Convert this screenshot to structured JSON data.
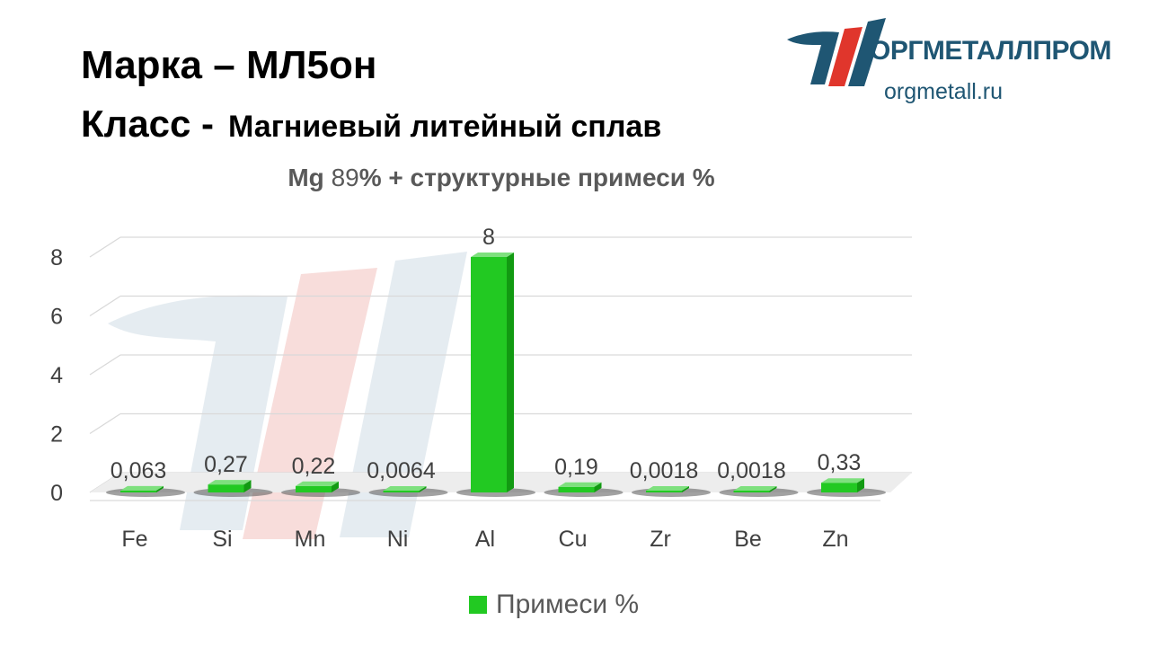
{
  "header": {
    "marka_label": "Марка",
    "marka_sep": "–",
    "marka_value": "МЛ5он",
    "klass_label": "Класс -",
    "klass_value": "Магниевый литейный сплав"
  },
  "logo": {
    "name": "ОРГМЕТАЛЛПРОМ",
    "url": "orgmetall.ru",
    "colors": {
      "brand_blue": "#1f5673",
      "brand_red": "#e0362c"
    }
  },
  "chart_data": {
    "type": "bar",
    "title_parts": {
      "element": "Mg",
      "percent": "89",
      "rest": "% + структурные  примеси %"
    },
    "categories": [
      "Fe",
      "Si",
      "Mn",
      "Ni",
      "Al",
      "Cu",
      "Zr",
      "Be",
      "Zn"
    ],
    "series": [
      {
        "name": "Примеси %",
        "values": [
          0.063,
          0.27,
          0.22,
          0.0064,
          8,
          0.19,
          0.0018,
          0.0018,
          0.33
        ],
        "labels": [
          "0,063",
          "0,27",
          "0,22",
          "0,0064",
          "8",
          "0,19",
          "0,0018",
          "0,0018",
          "0,33"
        ],
        "color": "#22c922"
      }
    ],
    "yticks": [
      "0",
      "2",
      "4",
      "6",
      "8"
    ],
    "ylim": [
      0,
      8
    ],
    "grid": true,
    "legend_position": "bottom"
  }
}
